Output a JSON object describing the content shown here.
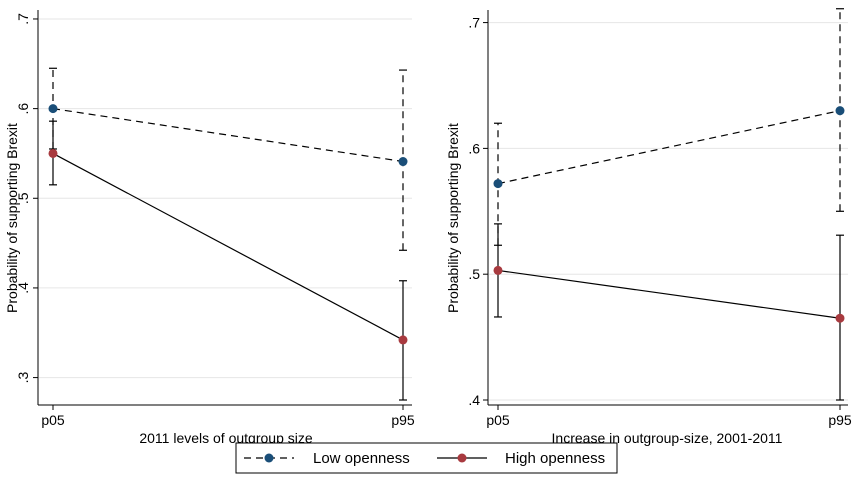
{
  "chart_data": [
    {
      "type": "line",
      "title": "",
      "xlabel": "2011 levels of outgroup size",
      "ylabel": "Probability of supporting Brexit",
      "categories": [
        "p05",
        "p95"
      ],
      "yticks": [
        ".3",
        ".4",
        ".5",
        ".6",
        ".7"
      ],
      "ylim": [
        0.275,
        0.71
      ],
      "grid": true,
      "series": [
        {
          "name": "Low openness",
          "values": [
            0.6,
            0.541
          ],
          "ci_low": [
            0.555,
            0.442
          ],
          "ci_high": [
            0.645,
            0.643
          ]
        },
        {
          "name": "High openness",
          "values": [
            0.55,
            0.342
          ],
          "ci_low": [
            0.515,
            0.275
          ],
          "ci_high": [
            0.586,
            0.408
          ]
        }
      ]
    },
    {
      "type": "line",
      "title": "",
      "xlabel": "Increase in outgroup-size, 2001-2011",
      "ylabel": "Probability of supporting Brexit",
      "categories": [
        "p05",
        "p95"
      ],
      "yticks": [
        ".4",
        ".5",
        ".6",
        ".7"
      ],
      "ylim": [
        0.4,
        0.71
      ],
      "grid": true,
      "series": [
        {
          "name": "Low openness",
          "values": [
            0.572,
            0.63
          ],
          "ci_low": [
            0.523,
            0.55
          ],
          "ci_high": [
            0.62,
            0.711
          ]
        },
        {
          "name": "High openness",
          "values": [
            0.503,
            0.465
          ],
          "ci_low": [
            0.466,
            0.4
          ],
          "ci_high": [
            0.54,
            0.531
          ]
        }
      ]
    }
  ],
  "legend": {
    "position": "bottom-center",
    "entries": [
      {
        "label": "Low openness",
        "marker_color": "#1a4e78",
        "line_style": "dashed"
      },
      {
        "label": "High openness",
        "marker_color": "#a83a3f",
        "line_style": "solid"
      }
    ]
  },
  "colors": {
    "low_openness": "#1a4e78",
    "high_openness": "#a83a3f",
    "grid": "#e6e6e6",
    "axis": "#000000"
  }
}
